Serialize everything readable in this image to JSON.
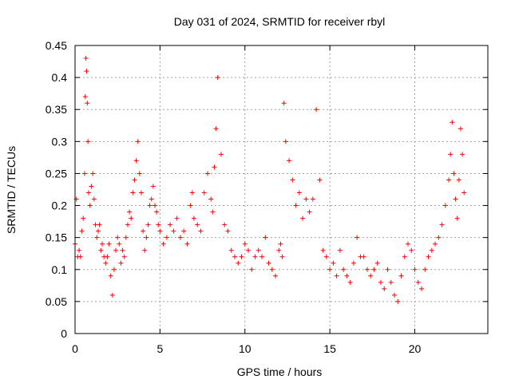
{
  "chart_data": {
    "type": "scatter",
    "title": "Day 031 of 2024, SRMTID for receiver rbyl",
    "xlabel": "GPS time / hours",
    "ylabel": "SRMTID / TECUs",
    "xlim": [
      0,
      24.3
    ],
    "ylim": [
      0,
      0.45
    ],
    "xticks": [
      0,
      5,
      10,
      15,
      20
    ],
    "xtick_labels": [
      "0",
      "5",
      "10",
      "15",
      "20"
    ],
    "yticks": [
      0,
      0.05,
      0.1,
      0.15,
      0.2,
      0.25,
      0.3,
      0.35,
      0.4,
      0.45
    ],
    "ytick_labels": [
      "0",
      "0.05",
      "0.1",
      "0.15",
      "0.2",
      "0.25",
      "0.3",
      "0.35",
      "0.4",
      "0.45"
    ],
    "grid": true,
    "marker": "+",
    "marker_color": "#ff0000",
    "series": [
      {
        "name": "SRMTID",
        "x": [
          0.0,
          0.08,
          0.16,
          0.24,
          0.32,
          0.4,
          0.48,
          0.56,
          0.6,
          0.64,
          0.68,
          0.72,
          0.76,
          0.8,
          0.88,
          0.96,
          1.04,
          1.12,
          1.2,
          1.28,
          1.36,
          1.44,
          1.52,
          1.6,
          1.7,
          1.8,
          1.9,
          2.0,
          2.1,
          2.2,
          2.3,
          2.4,
          2.5,
          2.6,
          2.7,
          2.8,
          2.9,
          3.0,
          3.1,
          3.2,
          3.3,
          3.4,
          3.5,
          3.6,
          3.7,
          3.8,
          3.9,
          4.0,
          4.1,
          4.2,
          4.3,
          4.4,
          4.5,
          4.6,
          4.7,
          4.8,
          4.9,
          5.0,
          5.2,
          5.4,
          5.6,
          5.8,
          6.0,
          6.2,
          6.4,
          6.6,
          6.8,
          6.9,
          7.0,
          7.2,
          7.4,
          7.6,
          7.8,
          8.0,
          8.1,
          8.2,
          8.3,
          8.4,
          8.6,
          8.8,
          9.0,
          9.2,
          9.4,
          9.6,
          9.8,
          10.0,
          10.2,
          10.4,
          10.6,
          10.8,
          11.0,
          11.2,
          11.4,
          11.6,
          11.8,
          12.0,
          12.1,
          12.2,
          12.3,
          12.4,
          12.6,
          12.8,
          13.0,
          13.2,
          13.4,
          13.6,
          13.8,
          14.0,
          14.2,
          14.4,
          14.6,
          14.8,
          15.0,
          15.2,
          15.4,
          15.6,
          15.8,
          16.0,
          16.2,
          16.4,
          16.6,
          16.8,
          17.0,
          17.2,
          17.4,
          17.6,
          17.8,
          18.0,
          18.2,
          18.4,
          18.6,
          18.8,
          19.0,
          19.2,
          19.4,
          19.6,
          19.8,
          20.0,
          20.2,
          20.4,
          20.6,
          20.8,
          21.0,
          21.2,
          21.4,
          21.6,
          21.8,
          22.0,
          22.1,
          22.2,
          22.3,
          22.4,
          22.5,
          22.6,
          22.7,
          22.8,
          22.9
        ],
        "y": [
          0.14,
          0.21,
          0.12,
          0.13,
          0.12,
          0.16,
          0.18,
          0.25,
          0.37,
          0.43,
          0.41,
          0.36,
          0.3,
          0.22,
          0.2,
          0.23,
          0.25,
          0.21,
          0.17,
          0.15,
          0.16,
          0.17,
          0.13,
          0.14,
          0.12,
          0.11,
          0.12,
          0.14,
          0.09,
          0.06,
          0.1,
          0.13,
          0.15,
          0.14,
          0.11,
          0.13,
          0.12,
          0.15,
          0.17,
          0.19,
          0.18,
          0.22,
          0.24,
          0.27,
          0.3,
          0.25,
          0.22,
          0.16,
          0.13,
          0.15,
          0.17,
          0.2,
          0.21,
          0.23,
          0.2,
          0.19,
          0.17,
          0.16,
          0.14,
          0.15,
          0.17,
          0.16,
          0.18,
          0.15,
          0.16,
          0.14,
          0.2,
          0.22,
          0.18,
          0.17,
          0.16,
          0.22,
          0.25,
          0.21,
          0.19,
          0.26,
          0.32,
          0.4,
          0.28,
          0.17,
          0.16,
          0.13,
          0.12,
          0.11,
          0.12,
          0.14,
          0.13,
          0.1,
          0.12,
          0.13,
          0.12,
          0.15,
          0.11,
          0.1,
          0.09,
          0.13,
          0.14,
          0.12,
          0.36,
          0.3,
          0.27,
          0.24,
          0.2,
          0.22,
          0.18,
          0.21,
          0.19,
          0.21,
          0.35,
          0.24,
          0.13,
          0.12,
          0.1,
          0.11,
          0.09,
          0.13,
          0.1,
          0.09,
          0.08,
          0.11,
          0.15,
          0.12,
          0.12,
          0.1,
          0.09,
          0.1,
          0.11,
          0.08,
          0.07,
          0.1,
          0.08,
          0.06,
          0.05,
          0.09,
          0.12,
          0.14,
          0.13,
          0.1,
          0.08,
          0.07,
          0.1,
          0.12,
          0.13,
          0.14,
          0.15,
          0.17,
          0.2,
          0.24,
          0.28,
          0.33,
          0.25,
          0.21,
          0.18,
          0.24,
          0.32,
          0.28,
          0.22
        ]
      }
    ]
  }
}
